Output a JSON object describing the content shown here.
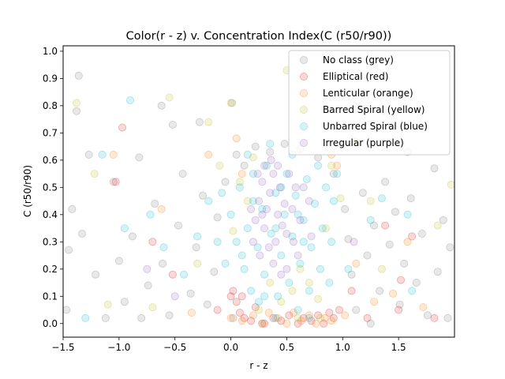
{
  "chart_data": {
    "type": "scatter",
    "title": "Color(r - z) v. Concentration Index(C (r50/r90))",
    "xlabel": "r - z",
    "ylabel": "C (r50/r90)",
    "xlim": [
      -1.5,
      2.0
    ],
    "ylim": [
      -0.05,
      1.02
    ],
    "xticks": [
      -1.5,
      -1.0,
      -0.5,
      0.0,
      0.5,
      1.0,
      1.5
    ],
    "xtick_labels": [
      "−1.5",
      "−1.0",
      "−0.5",
      "0.0",
      "0.5",
      "1.0",
      "1.5"
    ],
    "yticks": [
      0.0,
      0.1,
      0.2,
      0.3,
      0.4,
      0.5,
      0.6,
      0.7,
      0.8,
      0.9,
      1.0
    ],
    "ytick_labels": [
      "0.0",
      "0.1",
      "0.2",
      "0.3",
      "0.4",
      "0.5",
      "0.6",
      "0.7",
      "0.8",
      "0.9",
      "1.0"
    ],
    "grid": false,
    "legend_position": "top-right",
    "series": [
      {
        "name": "No class (grey)",
        "color": "#7f7f7f",
        "points": [
          [
            -1.36,
            0.91
          ],
          [
            -1.38,
            0.78
          ],
          [
            -1.27,
            0.62
          ],
          [
            -1.42,
            0.42
          ],
          [
            -1.33,
            0.33
          ],
          [
            -1.21,
            0.18
          ],
          [
            -1.12,
            0.02
          ],
          [
            -1.45,
            0.27
          ],
          [
            -1.05,
            0.52
          ],
          [
            -0.95,
            0.08
          ],
          [
            -0.88,
            0.32
          ],
          [
            -0.82,
            0.61
          ],
          [
            -0.74,
            0.14
          ],
          [
            -0.68,
            0.44
          ],
          [
            -0.61,
            0.22
          ],
          [
            -0.55,
            0.03
          ],
          [
            -0.52,
            0.73
          ],
          [
            -0.47,
            0.36
          ],
          [
            -0.43,
            0.55
          ],
          [
            -0.36,
            0.11
          ],
          [
            -0.31,
            0.28
          ],
          [
            -0.25,
            0.47
          ],
          [
            -0.21,
            0.07
          ],
          [
            -0.15,
            0.19
          ],
          [
            -0.12,
            0.39
          ],
          [
            -0.05,
            0.52
          ],
          [
            0.05,
            0.62
          ],
          [
            0.12,
            0.58
          ],
          [
            0.22,
            0.65
          ],
          [
            0.35,
            0.63
          ],
          [
            0.48,
            0.66
          ],
          [
            0.62,
            0.64
          ],
          [
            0.78,
            0.61
          ],
          [
            0.92,
            0.55
          ],
          [
            1.02,
            0.42
          ],
          [
            1.05,
            0.31
          ],
          [
            1.08,
            0.18
          ],
          [
            1.12,
            0.05
          ],
          [
            1.18,
            0.48
          ],
          [
            1.22,
            0.25
          ],
          [
            1.28,
            0.36
          ],
          [
            1.33,
            0.12
          ],
          [
            1.38,
            0.52
          ],
          [
            1.42,
            0.29
          ],
          [
            1.47,
            0.41
          ],
          [
            1.51,
            0.07
          ],
          [
            1.55,
            0.22
          ],
          [
            1.61,
            0.46
          ],
          [
            1.66,
            0.15
          ],
          [
            1.71,
            0.33
          ],
          [
            1.76,
            0.03
          ],
          [
            1.82,
            0.57
          ],
          [
            1.85,
            0.19
          ],
          [
            1.9,
            0.38
          ],
          [
            1.94,
            0.02
          ],
          [
            1.96,
            0.28
          ],
          [
            1.74,
            0.72
          ],
          [
            1.58,
            0.63
          ],
          [
            1.36,
            0.78
          ],
          [
            -0.62,
            0.8
          ],
          [
            -0.28,
            0.74
          ],
          [
            0.01,
            0.81
          ],
          [
            -1.47,
            0.05
          ],
          [
            -1.0,
            0.23
          ],
          [
            -0.8,
            0.02
          ],
          [
            1.25,
            0.0
          ],
          [
            0.28,
            0.0
          ],
          [
            0.02,
            0.02
          ]
        ]
      },
      {
        "name": "Elliptical (red)",
        "color": "#d62728",
        "points": [
          [
            -0.97,
            0.72
          ],
          [
            -1.03,
            0.52
          ],
          [
            -0.52,
            0.18
          ],
          [
            -0.12,
            0.05
          ],
          [
            0.0,
            0.1
          ],
          [
            0.05,
            0.08
          ],
          [
            0.08,
            0.04
          ],
          [
            0.12,
            0.02
          ],
          [
            0.18,
            0.01
          ],
          [
            0.22,
            0.06
          ],
          [
            0.3,
            0.0
          ],
          [
            0.38,
            0.02
          ],
          [
            0.45,
            0.01
          ],
          [
            0.52,
            0.03
          ],
          [
            0.6,
            0.0
          ],
          [
            0.65,
            0.02
          ],
          [
            0.72,
            0.01
          ],
          [
            0.78,
            0.03
          ],
          [
            0.83,
            0.0
          ],
          [
            0.88,
            0.04
          ],
          [
            0.92,
            0.02
          ],
          [
            0.97,
            0.05
          ],
          [
            1.08,
            0.12
          ],
          [
            1.22,
            0.02
          ],
          [
            1.38,
            0.36
          ],
          [
            1.5,
            0.05
          ],
          [
            1.52,
            0.16
          ],
          [
            1.62,
            0.32
          ],
          [
            1.82,
            0.02
          ],
          [
            -0.7,
            0.3
          ],
          [
            0.02,
            0.12
          ],
          [
            0.1,
            0.1
          ]
        ]
      },
      {
        "name": "Lenticular (orange)",
        "color": "#ff7f0e",
        "points": [
          [
            -1.05,
            0.62
          ],
          [
            -0.62,
            0.42
          ],
          [
            -0.35,
            0.04
          ],
          [
            0.0,
            0.02
          ],
          [
            0.1,
            0.01
          ],
          [
            0.2,
            0.03
          ],
          [
            0.28,
            0.0
          ],
          [
            0.34,
            0.04
          ],
          [
            0.42,
            0.02
          ],
          [
            0.5,
            0.0
          ],
          [
            0.56,
            0.04
          ],
          [
            0.63,
            0.01
          ],
          [
            0.7,
            0.03
          ],
          [
            0.76,
            0.0
          ],
          [
            0.84,
            0.02
          ],
          [
            0.9,
            0.01
          ],
          [
            1.02,
            0.03
          ],
          [
            1.12,
            0.22
          ],
          [
            1.28,
            0.08
          ],
          [
            1.45,
            0.11
          ],
          [
            1.58,
            0.3
          ],
          [
            1.72,
            0.06
          ],
          [
            0.05,
            0.68
          ],
          [
            0.1,
            0.55
          ],
          [
            -0.2,
            0.62
          ],
          [
            0.9,
            0.62
          ],
          [
            0.95,
            0.58
          ]
        ]
      },
      {
        "name": "Barred Spiral (yellow)",
        "color": "#bcbd22",
        "points": [
          [
            -1.38,
            0.81
          ],
          [
            -1.22,
            0.55
          ],
          [
            -0.55,
            0.83
          ],
          [
            -0.2,
            0.74
          ],
          [
            0.0,
            0.81
          ],
          [
            0.08,
            0.52
          ],
          [
            0.15,
            0.45
          ],
          [
            0.2,
            0.61
          ],
          [
            0.25,
            0.05
          ],
          [
            0.35,
            0.15
          ],
          [
            0.45,
            0.08
          ],
          [
            0.55,
            0.12
          ],
          [
            0.62,
            0.2
          ],
          [
            0.7,
            0.15
          ],
          [
            0.78,
            0.09
          ],
          [
            0.85,
            0.35
          ],
          [
            0.9,
            0.58
          ],
          [
            0.98,
            0.46
          ],
          [
            0.5,
            0.93
          ],
          [
            -0.1,
            0.58
          ],
          [
            -0.3,
            0.22
          ],
          [
            0.02,
            0.34
          ],
          [
            -0.7,
            0.06
          ],
          [
            1.25,
            0.45
          ],
          [
            1.35,
            0.2
          ],
          [
            1.1,
            0.67
          ],
          [
            1.85,
            0.36
          ],
          [
            1.97,
            0.51
          ],
          [
            -1.1,
            0.07
          ],
          [
            0.6,
            0.02
          ],
          [
            0.8,
            0.02
          ]
        ]
      },
      {
        "name": "Unbarred Spiral (blue)",
        "color": "#17becf",
        "points": [
          [
            -0.9,
            0.82
          ],
          [
            -1.3,
            0.02
          ],
          [
            -1.15,
            0.62
          ],
          [
            -0.95,
            0.35
          ],
          [
            -0.72,
            0.4
          ],
          [
            -0.6,
            0.28
          ],
          [
            -0.42,
            0.18
          ],
          [
            -0.3,
            0.32
          ],
          [
            -0.2,
            0.45
          ],
          [
            -0.12,
            0.3
          ],
          [
            -0.05,
            0.22
          ],
          [
            0.0,
            0.4
          ],
          [
            0.05,
            0.3
          ],
          [
            0.08,
            0.5
          ],
          [
            0.12,
            0.2
          ],
          [
            0.15,
            0.35
          ],
          [
            0.18,
            0.12
          ],
          [
            0.2,
            0.55
          ],
          [
            0.24,
            0.28
          ],
          [
            0.28,
            0.42
          ],
          [
            0.3,
            0.18
          ],
          [
            0.32,
            0.58
          ],
          [
            0.36,
            0.33
          ],
          [
            0.4,
            0.48
          ],
          [
            0.42,
            0.1
          ],
          [
            0.45,
            0.25
          ],
          [
            0.48,
            0.4
          ],
          [
            0.5,
            0.55
          ],
          [
            0.52,
            0.15
          ],
          [
            0.55,
            0.32
          ],
          [
            0.58,
            0.47
          ],
          [
            0.6,
            0.05
          ],
          [
            0.62,
            0.22
          ],
          [
            0.65,
            0.38
          ],
          [
            0.68,
            0.53
          ],
          [
            0.7,
            0.12
          ],
          [
            0.72,
            0.28
          ],
          [
            0.75,
            0.44
          ],
          [
            0.78,
            0.58
          ],
          [
            0.8,
            0.2
          ],
          [
            0.82,
            0.35
          ],
          [
            0.85,
            0.5
          ],
          [
            0.88,
            0.15
          ],
          [
            0.9,
            0.3
          ],
          [
            0.92,
            0.45
          ],
          [
            0.95,
            0.55
          ],
          [
            0.55,
            0.62
          ],
          [
            0.35,
            0.66
          ],
          [
            0.15,
            0.62
          ],
          [
            -0.08,
            0.48
          ],
          [
            0.25,
            0.08
          ],
          [
            0.4,
            0.02
          ],
          [
            0.7,
            0.02
          ],
          [
            1.05,
            0.2
          ],
          [
            1.35,
            0.46
          ],
          [
            1.58,
            0.4
          ],
          [
            1.62,
            0.12
          ],
          [
            1.25,
            0.38
          ],
          [
            0.1,
            0.25
          ],
          [
            0.6,
            0.4
          ],
          [
            0.45,
            0.5
          ],
          [
            0.3,
            0.1
          ],
          [
            0.65,
            0.3
          ],
          [
            0.4,
            0.35
          ],
          [
            0.2,
            0.45
          ]
        ]
      },
      {
        "name": "Irregular (purple)",
        "color": "#9467bd",
        "points": [
          [
            0.2,
            0.3
          ],
          [
            0.22,
            0.38
          ],
          [
            0.25,
            0.45
          ],
          [
            0.28,
            0.52
          ],
          [
            0.3,
            0.35
          ],
          [
            0.32,
            0.42
          ],
          [
            0.35,
            0.48
          ],
          [
            0.38,
            0.55
          ],
          [
            0.4,
            0.3
          ],
          [
            0.42,
            0.4
          ],
          [
            0.44,
            0.5
          ],
          [
            0.46,
            0.36
          ],
          [
            0.48,
            0.44
          ],
          [
            0.26,
            0.25
          ],
          [
            0.34,
            0.28
          ],
          [
            0.5,
            0.33
          ],
          [
            0.55,
            0.42
          ],
          [
            0.58,
            0.5
          ],
          [
            0.62,
            0.38
          ],
          [
            0.3,
            0.58
          ],
          [
            0.36,
            0.6
          ],
          [
            0.24,
            0.55
          ],
          [
            0.52,
            0.55
          ],
          [
            0.5,
            0.2
          ],
          [
            0.6,
            0.25
          ],
          [
            0.45,
            0.18
          ],
          [
            0.38,
            0.22
          ],
          [
            0.7,
            0.45
          ],
          [
            0.72,
            0.32
          ],
          [
            0.28,
            0.4
          ],
          [
            0.18,
            0.42
          ],
          [
            0.56,
            0.3
          ],
          [
            0.65,
            0.5
          ],
          [
            0.42,
            0.58
          ],
          [
            -0.75,
            0.2
          ],
          [
            -0.5,
            0.1
          ],
          [
            1.1,
            0.3
          ]
        ]
      }
    ]
  }
}
